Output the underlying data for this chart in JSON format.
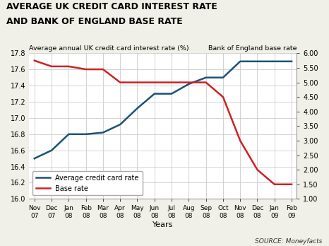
{
  "title_line1": "AVERAGE UK CREDIT CARD INTEREST RATE",
  "title_line2": "AND BANK OF ENGLAND BASE RATE",
  "ylabel_left": "Average annual UK credit card interest rate (%)",
  "ylabel_right": "Bank of England base rate",
  "xlabel": "Years",
  "source": "SOURCE: Moneyfacts",
  "x_labels_top": [
    "Nov",
    "Dec",
    "Jan",
    "Feb",
    "Mar",
    "Apr",
    "May",
    "Jun",
    "Jul",
    "Aug",
    "Sep",
    "Oct",
    "Nov",
    "Dec",
    "Jan",
    "Feb"
  ],
  "x_labels_bot": [
    "07",
    "07",
    "08",
    "08",
    "08",
    "08",
    "08",
    "08",
    "08",
    "08",
    "08",
    "08",
    "08",
    "08",
    "09",
    "09"
  ],
  "credit_card_rate": [
    16.5,
    16.6,
    16.8,
    16.8,
    16.82,
    16.92,
    17.12,
    17.3,
    17.3,
    17.42,
    17.5,
    17.5,
    17.7,
    17.7,
    17.7,
    17.7
  ],
  "base_rate": [
    5.75,
    5.55,
    5.55,
    5.45,
    5.45,
    5.0,
    5.0,
    5.0,
    5.0,
    5.0,
    5.0,
    4.5,
    3.0,
    2.0,
    1.5,
    1.5
  ],
  "cc_color": "#1a5276",
  "base_color": "#cc2222",
  "ylim_left": [
    16.0,
    17.8
  ],
  "ylim_right": [
    1.0,
    6.0
  ],
  "yticks_left": [
    16.0,
    16.2,
    16.4,
    16.6,
    16.8,
    17.0,
    17.2,
    17.4,
    17.6,
    17.8
  ],
  "yticks_right": [
    1.0,
    1.5,
    2.0,
    2.5,
    3.0,
    3.5,
    4.0,
    4.5,
    5.0,
    5.5,
    6.0
  ],
  "ytick_labels_right": [
    "1.00",
    "1.50",
    "2.00",
    "2.50",
    "3.00",
    "3.50",
    "4.00",
    "4.50",
    "5.00",
    "5.50",
    "6.00"
  ],
  "plot_bg": "#ffffff",
  "fig_bg": "#f0f0e8",
  "grid_color": "#cccccc",
  "line_width": 1.8,
  "legend_loc": "lower left"
}
